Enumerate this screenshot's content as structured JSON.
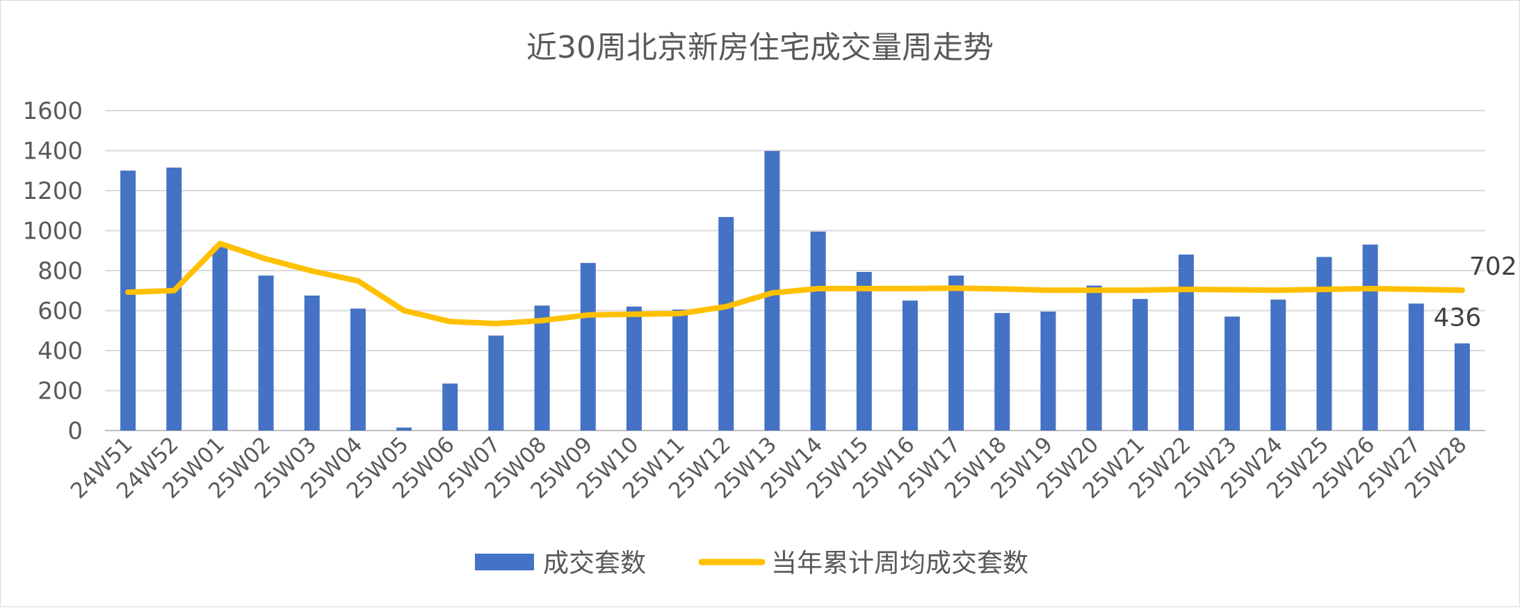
{
  "chart_data": {
    "type": "bar",
    "title": "近30周北京新房住宅成交量周走势",
    "categories": [
      "24W51",
      "24W52",
      "25W01",
      "25W02",
      "25W03",
      "25W04",
      "25W05",
      "25W06",
      "25W07",
      "25W08",
      "25W09",
      "25W10",
      "25W11",
      "25W12",
      "25W13",
      "25W14",
      "25W15",
      "25W16",
      "25W17",
      "25W18",
      "25W19",
      "25W20",
      "25W21",
      "25W22",
      "25W23",
      "25W24",
      "25W25",
      "25W26",
      "25W27",
      "25W28"
    ],
    "ylim": [
      0,
      1600
    ],
    "yticks": [
      0,
      200,
      400,
      600,
      800,
      1000,
      1200,
      1400,
      1600
    ],
    "grid": true,
    "legend_position": "bottom",
    "series": [
      {
        "name": "成交套数",
        "type": "bar",
        "color": "#4472C4",
        "values": [
          1300,
          1315,
          920,
          775,
          675,
          610,
          15,
          235,
          475,
          625,
          838,
          620,
          605,
          1068,
          1398,
          995,
          793,
          650,
          775,
          588,
          595,
          725,
          658,
          880,
          570,
          655,
          868,
          930,
          635,
          436
        ]
      },
      {
        "name": "当年累计周均成交套数",
        "type": "line",
        "color": "#FFC000",
        "values": [
          692,
          700,
          935,
          858,
          798,
          748,
          600,
          545,
          535,
          550,
          578,
          582,
          585,
          620,
          688,
          710,
          710,
          710,
          712,
          708,
          702,
          702,
          702,
          706,
          704,
          702,
          706,
          710,
          706,
          702
        ]
      }
    ],
    "data_labels": [
      {
        "series": "当年累计周均成交套数",
        "category": "25W28",
        "text": "702"
      },
      {
        "series": "成交套数",
        "category": "25W28",
        "text": "436"
      }
    ]
  }
}
